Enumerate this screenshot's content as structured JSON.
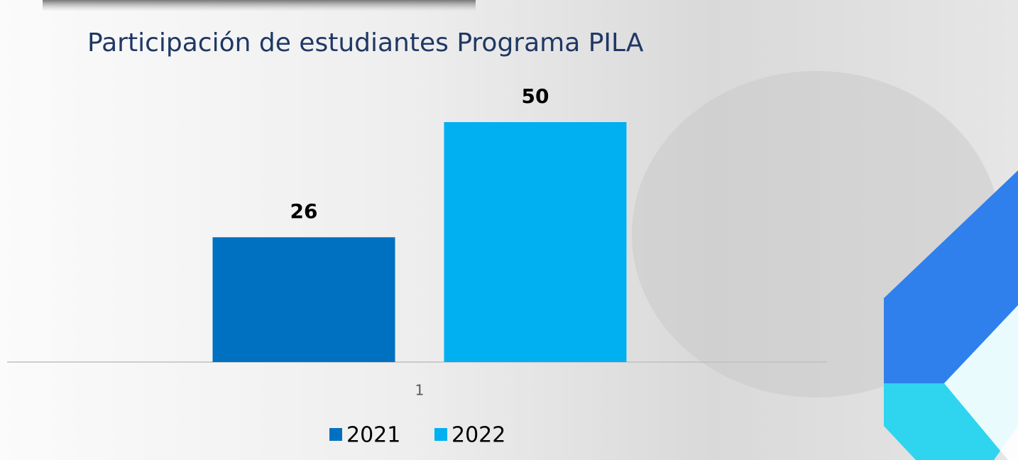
{
  "chart_data": {
    "type": "bar",
    "title": "Participación de estudiantes Programa PILA",
    "categories": [
      "1"
    ],
    "series": [
      {
        "name": "2021",
        "color": "#0070c0",
        "values": [
          26
        ]
      },
      {
        "name": "2022",
        "color": "#00b0f0",
        "values": [
          50
        ]
      }
    ],
    "legend": "bottom"
  }
}
